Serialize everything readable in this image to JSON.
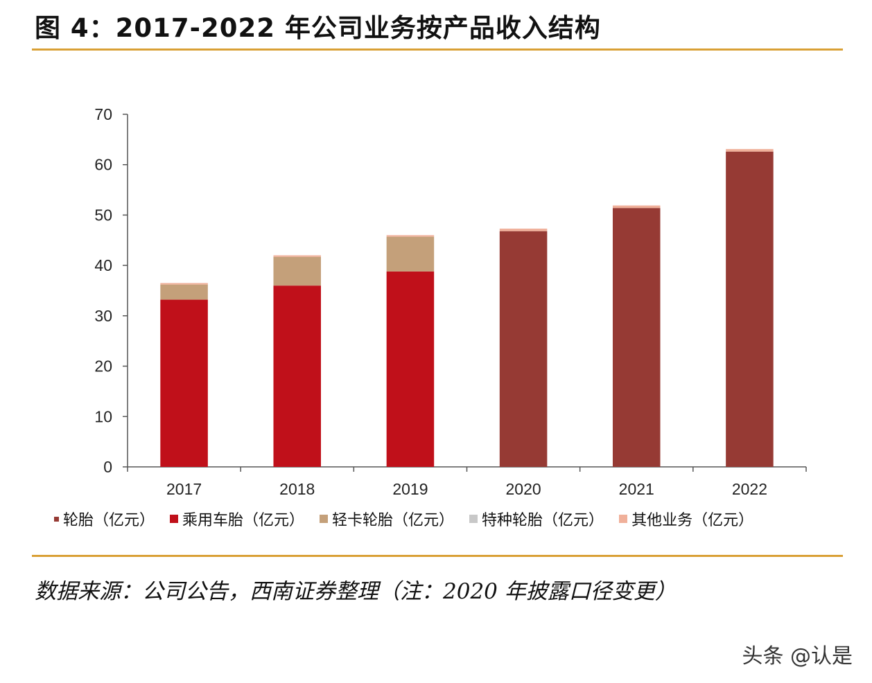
{
  "title": "图 4：2017-2022 年公司业务按产品收入结构",
  "source": "数据来源：公司公告，西南证券整理（注：2020 年披露口径变更）",
  "watermark": "头条 @认是",
  "colors": {
    "accent_rule": "#d9a035",
    "tire": "#963a34",
    "passenger": "#c0101a",
    "light_truck": "#c4a07a",
    "special": "#c8c8c8",
    "other": "#f0b09a",
    "axis": "#555555"
  },
  "legend": [
    {
      "label": "轮胎（亿元）",
      "color_key": "tire"
    },
    {
      "label": "乘用车胎（亿元）",
      "color_key": "passenger"
    },
    {
      "label": "轻卡轮胎（亿元）",
      "color_key": "light_truck"
    },
    {
      "label": "特种轮胎（亿元）",
      "color_key": "special"
    },
    {
      "label": "其他业务（亿元）",
      "color_key": "other"
    }
  ],
  "chart_data": {
    "type": "bar",
    "stacked": true,
    "title": "2017-2022 年公司业务按产品收入结构",
    "xlabel": "",
    "ylabel": "",
    "ylim": [
      0,
      70
    ],
    "yticks": [
      0,
      10,
      20,
      30,
      40,
      50,
      60,
      70
    ],
    "categories": [
      "2017",
      "2018",
      "2019",
      "2020",
      "2021",
      "2022"
    ],
    "series": [
      {
        "name": "轮胎（亿元）",
        "color_key": "tire",
        "values": [
          0,
          0,
          0,
          46.8,
          51.4,
          62.6
        ]
      },
      {
        "name": "乘用车胎（亿元）",
        "color_key": "passenger",
        "values": [
          33.2,
          36.0,
          38.8,
          0,
          0,
          0
        ]
      },
      {
        "name": "轻卡轮胎（亿元）",
        "color_key": "light_truck",
        "values": [
          3.0,
          5.7,
          6.9,
          0,
          0,
          0
        ]
      },
      {
        "name": "特种轮胎（亿元）",
        "color_key": "special",
        "values": [
          0,
          0,
          0,
          0,
          0,
          0
        ]
      },
      {
        "name": "其他业务（亿元）",
        "color_key": "other",
        "values": [
          0.3,
          0.3,
          0.3,
          0.5,
          0.5,
          0.5
        ]
      }
    ]
  }
}
